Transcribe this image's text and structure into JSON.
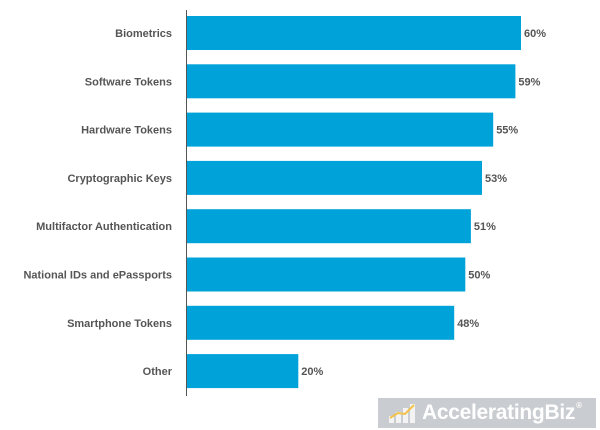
{
  "chart_data": {
    "type": "bar",
    "orientation": "horizontal",
    "categories": [
      "Biometrics",
      "Software Tokens",
      "Hardware Tokens",
      "Cryptographic Keys",
      "Multifactor Authentication",
      "National IDs and ePassports",
      "Smartphone Tokens",
      "Other"
    ],
    "values": [
      60,
      59,
      55,
      53,
      51,
      50,
      48,
      20
    ],
    "value_labels": [
      "60%",
      "59%",
      "55%",
      "53%",
      "51%",
      "50%",
      "48%",
      "20%"
    ],
    "xlim": [
      0,
      60
    ],
    "grid": false,
    "legend": "none",
    "bar_color": "#00a3d9"
  },
  "watermark": {
    "brand_light": "Accelerating",
    "brand_bold": "Biz",
    "registered": "®"
  }
}
